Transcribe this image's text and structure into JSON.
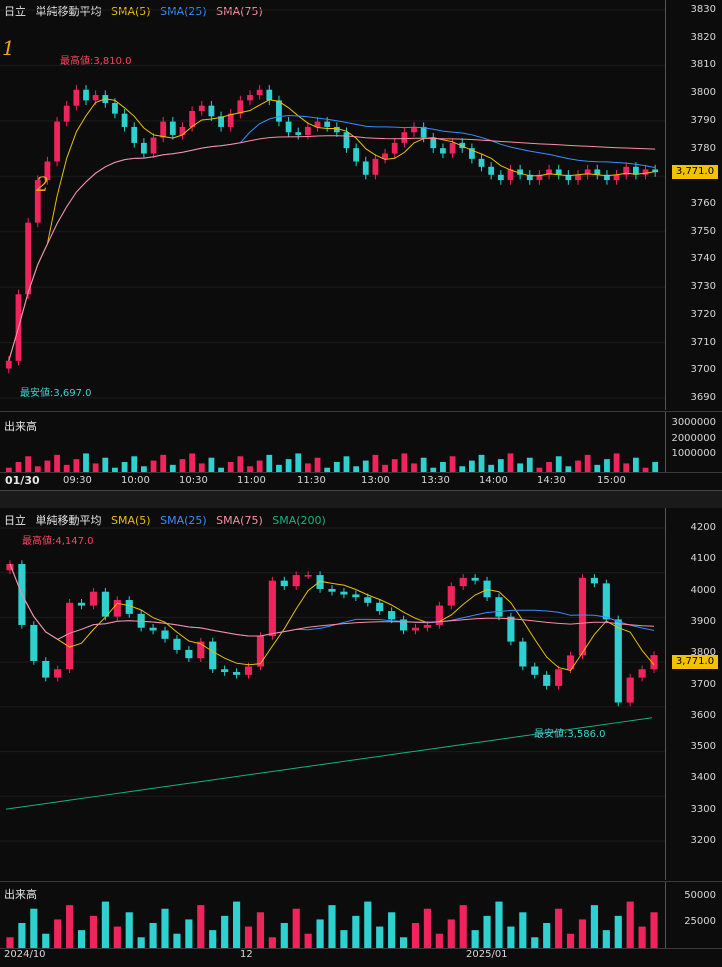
{
  "colors": {
    "up": "#f0245c",
    "down": "#2fd0d0",
    "sma5": "#e8c000",
    "sma25": "#3a8cff",
    "sma75": "#ff8ca0",
    "sma200": "#16b080",
    "bg": "#0c0c0c",
    "price_tag": "#f2c200",
    "high_label": "#ff4060",
    "low_label": "#40d0d0"
  },
  "intraday": {
    "header": {
      "symbol": "日立",
      "indicator": "単純移動平均",
      "sma5": "SMA(5)",
      "sma25": "SMA(25)",
      "sma75": "SMA(75)"
    },
    "high_label": "最高値:3,810.0",
    "low_label": "最安値:3,697.0",
    "current_price": "3,771.0",
    "volume_label": "出来高",
    "y_ticks": [
      "3830",
      "3820",
      "3810",
      "3800",
      "3790",
      "3780",
      "3770",
      "3760",
      "3750",
      "3740",
      "3730",
      "3720",
      "3710",
      "3700",
      "3690"
    ],
    "volume_ticks": [
      "3000000",
      "2000000",
      "1000000"
    ],
    "date": "01/30",
    "x_ticks": [
      "09:30",
      "10:00",
      "10:30",
      "11:00",
      "11:30",
      "13:00",
      "13:30",
      "14:00",
      "14:30",
      "15:00"
    ],
    "annotations": [
      "1",
      "2"
    ]
  },
  "daily": {
    "header": {
      "symbol": "日立",
      "indicator": "単純移動平均",
      "sma5": "SMA(5)",
      "sma25": "SMA(25)",
      "sma75": "SMA(75)",
      "sma200": "SMA(200)"
    },
    "high_label": "最高値:4,147.0",
    "low_label": "最安値:3,586.0",
    "current_price": "3,771.0",
    "volume_label": "出来高",
    "y_ticks": [
      "4200",
      "4100",
      "4000",
      "3900",
      "3800",
      "3700",
      "3600",
      "3500",
      "3400",
      "3300",
      "3200"
    ],
    "volume_ticks": [
      "50000",
      "25000"
    ],
    "x_ticks": [
      "2024/10",
      "12",
      "2025/01"
    ]
  },
  "chart_data": [
    {
      "type": "candlestick",
      "title": "",
      "interval": "intraday",
      "ylim": [
        3686,
        3832
      ],
      "close": [
        3700,
        3725,
        3752,
        3768,
        3775,
        3790,
        3796,
        3802,
        3798,
        3800,
        3797,
        3793,
        3788,
        3782,
        3778,
        3784,
        3790,
        3785,
        3788,
        3794,
        3796,
        3792,
        3788,
        3793,
        3798,
        3800,
        3802,
        3798,
        3790,
        3786,
        3785,
        3788,
        3790,
        3788,
        3786,
        3780,
        3775,
        3770,
        3776,
        3778,
        3782,
        3786,
        3788,
        3784,
        3780,
        3778,
        3782,
        3780,
        3776,
        3773,
        3770,
        3768,
        3772,
        3770,
        3768,
        3770,
        3772,
        3770,
        3768,
        3770,
        3772,
        3770,
        3768,
        3770,
        3773,
        3770,
        3772,
        3771
      ]
    },
    {
      "type": "candlestick",
      "title": "",
      "interval": "daily",
      "ylim": [
        3100,
        4230
      ],
      "close": [
        4100,
        3880,
        3750,
        3690,
        3720,
        3960,
        3950,
        4000,
        3910,
        3970,
        3920,
        3870,
        3860,
        3830,
        3790,
        3760,
        3820,
        3720,
        3710,
        3700,
        3730,
        3840,
        4040,
        4020,
        4060,
        4060,
        4010,
        4000,
        3990,
        3980,
        3960,
        3930,
        3900,
        3860,
        3870,
        3880,
        3950,
        4020,
        4050,
        4040,
        3980,
        3910,
        3820,
        3730,
        3700,
        3660,
        3720,
        3770,
        4050,
        4030,
        3900,
        3600,
        3690,
        3720,
        3771
      ]
    }
  ]
}
